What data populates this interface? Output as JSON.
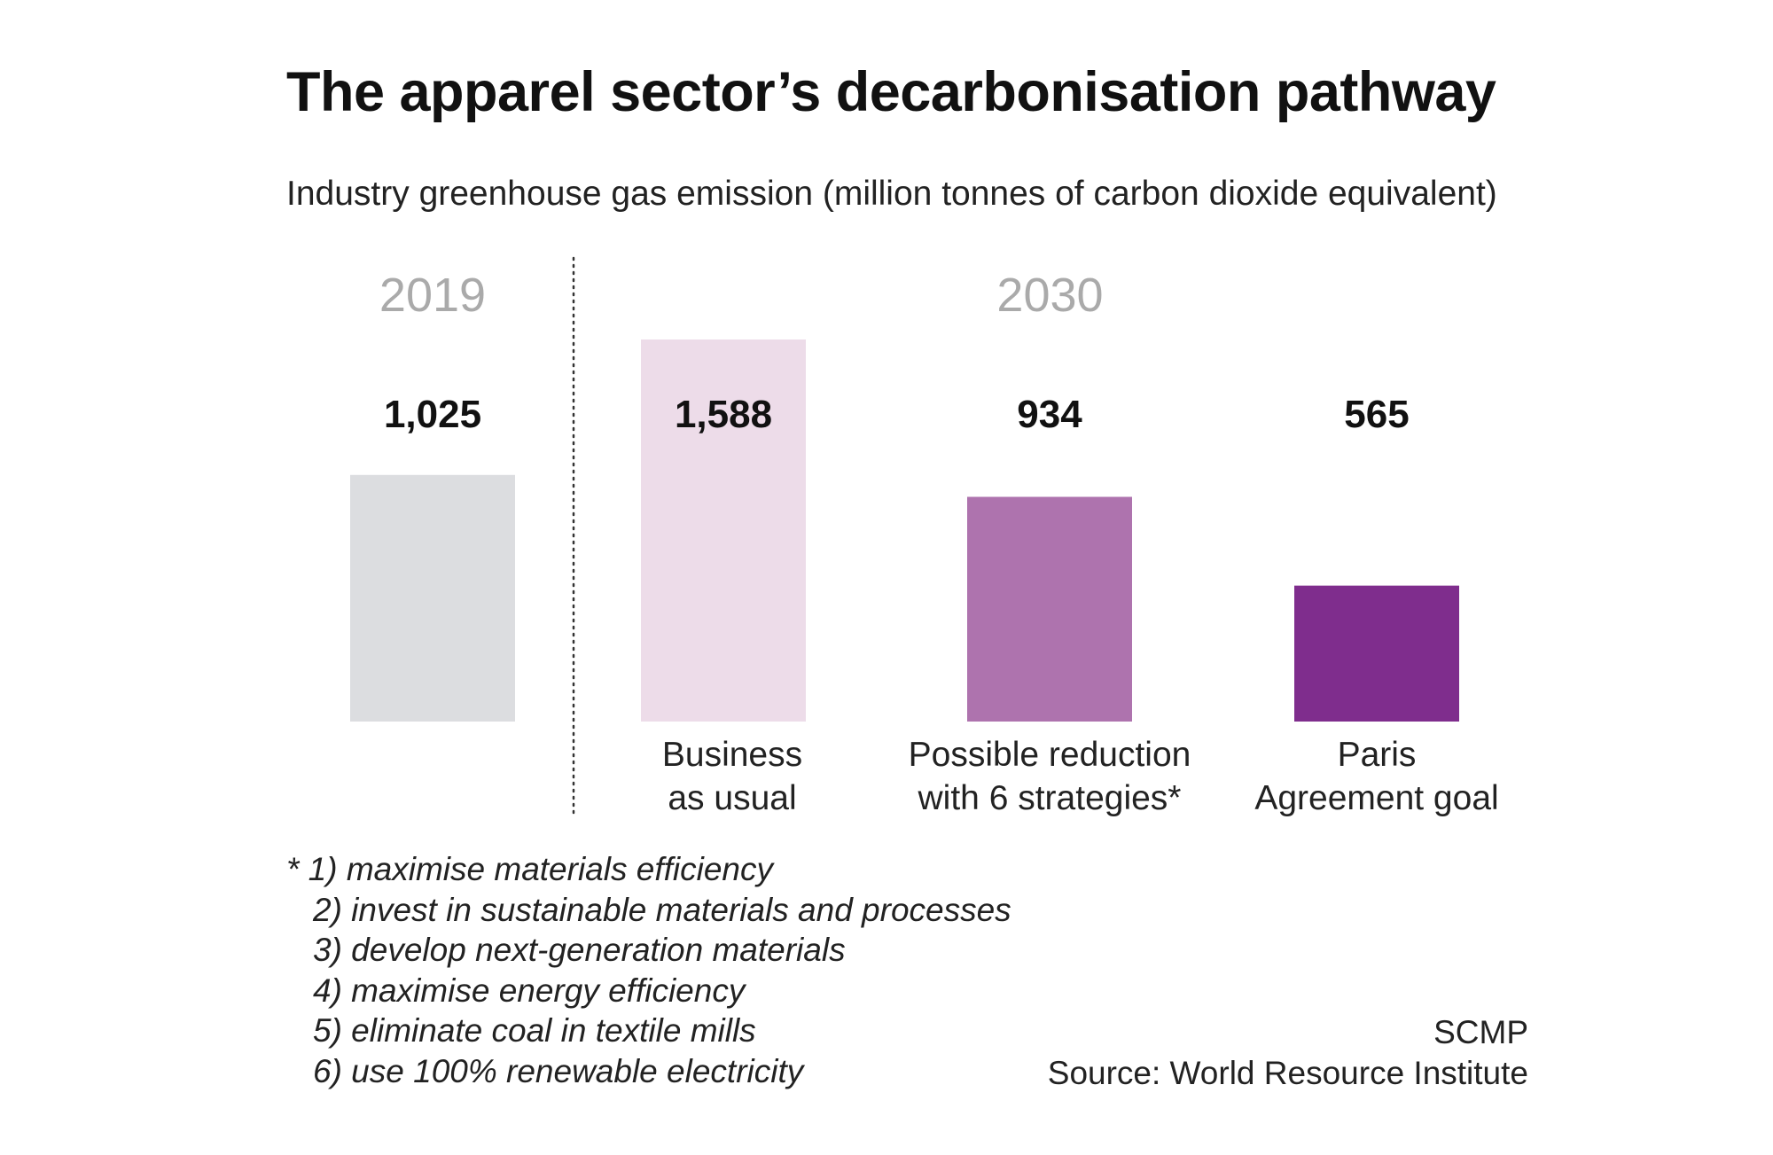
{
  "title": "The apparel sector’s decarbonisation pathway",
  "subtitle": "Industry greenhouse gas emission (million tonnes of carbon dioxide equivalent)",
  "chart_data": {
    "type": "bar",
    "title": "The apparel sector’s decarbonisation pathway",
    "ylabel": "Industry greenhouse gas emission (million tonnes of carbon dioxide equivalent)",
    "groups": [
      {
        "label": "2019",
        "categories": [
          0
        ]
      },
      {
        "label": "2030",
        "categories": [
          1,
          2,
          3
        ]
      }
    ],
    "categories": [
      {
        "year": "2019",
        "lines": [],
        "value": 1025,
        "value_label": "1,025",
        "color": "#dcdde0"
      },
      {
        "year": "2030",
        "lines": [
          "Business",
          "as usual"
        ],
        "value": 1588,
        "value_label": "1,588",
        "color": "#eddce9"
      },
      {
        "year": "2030",
        "lines": [
          "Possible reduction",
          "with 6 strategies*"
        ],
        "value": 934,
        "value_label": "934",
        "color": "#ae73ae"
      },
      {
        "year": "2030",
        "lines": [
          "Paris",
          "Agreement goal"
        ],
        "value": 565,
        "value_label": "565",
        "color": "#7f2d8d"
      }
    ],
    "ylim": [
      0,
      1588
    ],
    "grid": false,
    "legend": "none"
  },
  "footnote": {
    "lines": [
      "* 1) maximise materials efficiency",
      "2) invest in sustainable materials and processes",
      "3) develop next-generation materials",
      "4) maximise energy efficiency",
      "5) eliminate coal in textile mills",
      "6) use 100% renewable electricity"
    ]
  },
  "credit": {
    "brand": "SCMP",
    "source": "Source: World Resource Institute"
  },
  "colors": {
    "year_label": "#aaaaaa",
    "text": "#111111",
    "divider": "#333333"
  }
}
